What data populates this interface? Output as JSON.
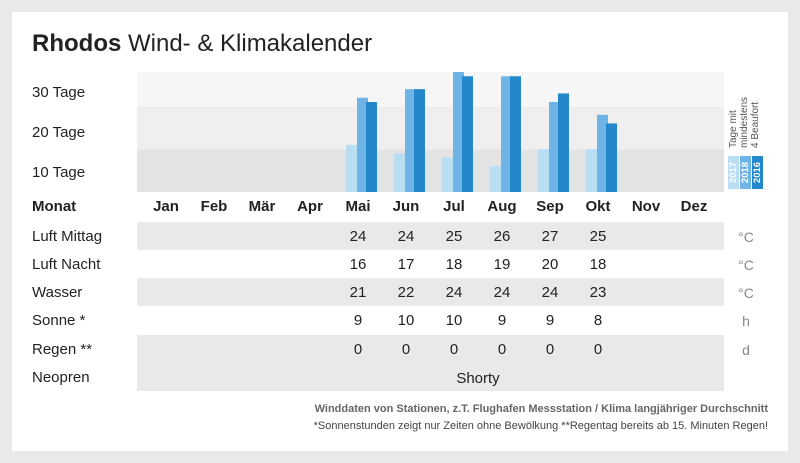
{
  "header": {
    "title_bold": "Rhodos",
    "title_rest": "Wind- & Klimakalender"
  },
  "chart_data": {
    "type": "bar",
    "categories": [
      "Jan",
      "Feb",
      "Mär",
      "Apr",
      "Mai",
      "Jun",
      "Jul",
      "Aug",
      "Sep",
      "Okt",
      "Nov",
      "Dez"
    ],
    "ylabel": "Tage mit mindestens 4 Beaufort",
    "y_tick_labels": [
      "10 Tage",
      "20 Tage",
      "30 Tage"
    ],
    "y_ticks": [
      10,
      20,
      30
    ],
    "ylim": [
      0,
      28
    ],
    "series": [
      {
        "name": "2017",
        "color": "#b9def4",
        "values": [
          null,
          null,
          null,
          null,
          11,
          9,
          8,
          6,
          10,
          10,
          null,
          null
        ]
      },
      {
        "name": "2018",
        "color": "#6fb4e6",
        "values": [
          null,
          null,
          null,
          null,
          22,
          24,
          28,
          27,
          21,
          18,
          null,
          null
        ]
      },
      {
        "name": "2016",
        "color": "#2387cb",
        "values": [
          null,
          null,
          null,
          null,
          21,
          24,
          27,
          27,
          23,
          16,
          null,
          null
        ]
      }
    ]
  },
  "table": {
    "header_label": "Monat",
    "months": [
      "Jan",
      "Feb",
      "Mär",
      "Apr",
      "Mai",
      "Jun",
      "Jul",
      "Aug",
      "Sep",
      "Okt",
      "Nov",
      "Dez"
    ],
    "rows": [
      {
        "label": "Luft Mittag",
        "unit": "°C",
        "values": [
          "",
          "",
          "",
          "",
          "24",
          "24",
          "25",
          "26",
          "27",
          "25",
          "",
          ""
        ]
      },
      {
        "label": "Luft Nacht",
        "unit": "°C",
        "values": [
          "",
          "",
          "",
          "",
          "16",
          "17",
          "18",
          "19",
          "20",
          "18",
          "",
          ""
        ]
      },
      {
        "label": "Wasser",
        "unit": "°C",
        "values": [
          "",
          "",
          "",
          "",
          "21",
          "22",
          "24",
          "24",
          "24",
          "23",
          "",
          ""
        ]
      },
      {
        "label": "Sonne *",
        "unit": "h",
        "values": [
          "",
          "",
          "",
          "",
          "9",
          "10",
          "10",
          "9",
          "9",
          "8",
          "",
          ""
        ]
      },
      {
        "label": "Regen **",
        "unit": "d",
        "values": [
          "",
          "",
          "",
          "",
          "0",
          "0",
          "0",
          "0",
          "0",
          "0",
          "",
          ""
        ]
      }
    ],
    "neopren_label": "Neopren",
    "neopren_value": "Shorty"
  },
  "legend": {
    "vertical_label_lines": [
      "Tage mit",
      "mindestens",
      "4 Beaufort"
    ]
  },
  "footer": {
    "line1": "Winddaten von Stationen, z.T. Flughafen Messstation / Klima langjähriger Durchschnitt",
    "line2": "*Sonnenstunden zeigt nur Zeiten ohne Bewölkung  **Regentag bereits ab 15. Minuten Regen!"
  }
}
